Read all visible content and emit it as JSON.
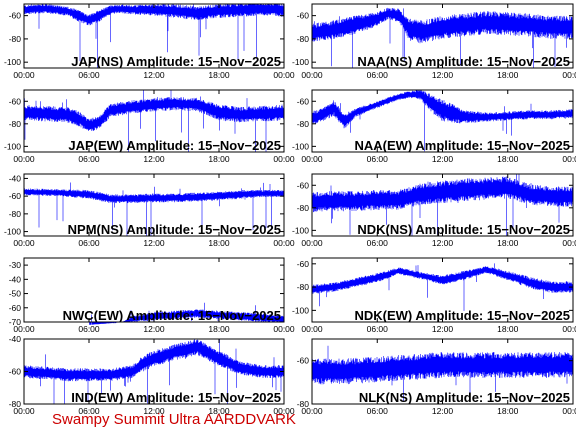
{
  "footer": "Swampy Summit Ultra AARDDVARK",
  "colors": {
    "trace": "#0000ff",
    "frame": "#000000",
    "footer": "#cc0000"
  },
  "chart_data": [
    {
      "type": "line",
      "title": "JAP(NS) Amplitude: 15−Nov−2025",
      "ylim": [
        -105,
        -50
      ],
      "yticks": [
        "-100",
        "-80",
        "-60"
      ],
      "xticks": [
        "00:00",
        "06:00",
        "12:00",
        "18:00",
        "00:00"
      ],
      "series": [
        {
          "x": [
            0,
            2,
            4,
            5,
            6,
            7,
            8,
            9,
            10,
            12,
            14,
            16,
            18,
            20,
            22,
            24
          ],
          "values": [
            -55,
            -54,
            -56,
            -60,
            -64,
            -60,
            -55,
            -54,
            -55,
            -55,
            -56,
            -58,
            -56,
            -55,
            -54,
            -55
          ],
          "noise": [
            4,
            4,
            4,
            5,
            5,
            5,
            4,
            4,
            4,
            5,
            6,
            6,
            6,
            6,
            6,
            6
          ],
          "spike": 0.35
        }
      ]
    },
    {
      "type": "line",
      "title": "NAA(NS) Amplitude: 15−Nov−2025",
      "ylim": [
        -105,
        -50
      ],
      "yticks": [
        "-100",
        "-80",
        "-60"
      ],
      "xticks": [
        "00:00",
        "06:00",
        "12:00",
        "18:00",
        "00:00"
      ],
      "series": [
        {
          "x": [
            0,
            2,
            4,
            6,
            7,
            8,
            9,
            10,
            12,
            14,
            16,
            18,
            20,
            22,
            24
          ],
          "values": [
            -75,
            -72,
            -68,
            -63,
            -58,
            -60,
            -72,
            -74,
            -70,
            -68,
            -66,
            -67,
            -68,
            -70,
            -70
          ],
          "noise": [
            8,
            8,
            8,
            6,
            5,
            6,
            10,
            10,
            10,
            10,
            10,
            10,
            10,
            10,
            10
          ],
          "spike": 0.25
        }
      ]
    },
    {
      "type": "line",
      "title": "JAP(EW) Amplitude: 15−Nov−2025",
      "ylim": [
        -105,
        -50
      ],
      "yticks": [
        "-100",
        "-80",
        "-60"
      ],
      "xticks": [
        "00:00",
        "06:00",
        "12:00",
        "18:00",
        "00:00"
      ],
      "series": [
        {
          "x": [
            0,
            2,
            4,
            5,
            6,
            7,
            8,
            10,
            12,
            14,
            16,
            18,
            20,
            22,
            24
          ],
          "values": [
            -70,
            -71,
            -72,
            -75,
            -82,
            -78,
            -68,
            -65,
            -63,
            -62,
            -63,
            -70,
            -72,
            -71,
            -70
          ],
          "noise": [
            7,
            7,
            7,
            7,
            6,
            6,
            6,
            6,
            6,
            6,
            6,
            7,
            7,
            7,
            7
          ],
          "spike": 0.35
        }
      ]
    },
    {
      "type": "line",
      "title": "NAA(EW) Amplitude: 15−Nov−2025",
      "ylim": [
        -105,
        -50
      ],
      "yticks": [
        "-100",
        "-80",
        "-60"
      ],
      "xticks": [
        "00:00",
        "06:00",
        "12:00",
        "18:00",
        "00:00"
      ],
      "series": [
        {
          "x": [
            0,
            1,
            2,
            3,
            4,
            6,
            8,
            9,
            10,
            11,
            12,
            14,
            16,
            18,
            20,
            22,
            24
          ],
          "values": [
            -75,
            -72,
            -66,
            -78,
            -70,
            -63,
            -56,
            -54,
            -54,
            -62,
            -68,
            -74,
            -74,
            -73,
            -72,
            -72,
            -71
          ],
          "noise": [
            6,
            6,
            7,
            7,
            4,
            3,
            3,
            3,
            5,
            8,
            10,
            6,
            4,
            4,
            4,
            4,
            4
          ],
          "spike": 0.2
        }
      ]
    },
    {
      "type": "line",
      "title": "NPM(NS) Amplitude: 15−Nov−2025",
      "ylim": [
        -105,
        -35
      ],
      "yticks": [
        "-100",
        "-80",
        "-60",
        "-40"
      ],
      "xticks": [
        "00:00",
        "06:00",
        "12:00",
        "18:00",
        "00:00"
      ],
      "series": [
        {
          "x": [
            0,
            3,
            6,
            8,
            10,
            12,
            14,
            16,
            18,
            20,
            22,
            24
          ],
          "values": [
            -55,
            -56,
            -58,
            -63,
            -63,
            -62,
            -62,
            -61,
            -60,
            -58,
            -57,
            -57
          ],
          "noise": [
            4,
            4,
            5,
            5,
            5,
            5,
            5,
            5,
            5,
            5,
            4,
            4
          ],
          "spike": 0.3
        }
      ]
    },
    {
      "type": "line",
      "title": "NDK(NS) Amplitude: 15−Nov−2025",
      "ylim": [
        -105,
        -50
      ],
      "yticks": [
        "-100",
        "-80",
        "-60"
      ],
      "xticks": [
        "00:00",
        "06:00",
        "12:00",
        "18:00",
        "00:00"
      ],
      "series": [
        {
          "x": [
            0,
            2,
            4,
            6,
            8,
            10,
            12,
            14,
            16,
            18,
            20,
            22,
            24
          ],
          "values": [
            -75,
            -74,
            -74,
            -73,
            -73,
            -68,
            -66,
            -64,
            -63,
            -62,
            -68,
            -70,
            -70
          ],
          "noise": [
            9,
            9,
            9,
            9,
            9,
            10,
            10,
            10,
            10,
            10,
            9,
            9,
            9
          ],
          "spike": 0.25
        }
      ]
    },
    {
      "type": "line",
      "title": "NWC(EW) Amplitude: 15−Nov−2025",
      "ylim": [
        -70,
        -25
      ],
      "yticks": [
        "-70",
        "-60",
        "-50",
        "-40",
        "-30"
      ],
      "xticks": [
        "00:00",
        "06:00",
        "12:00",
        "18:00",
        "00:00"
      ],
      "series": [
        {
          "x": [
            0,
            6,
            9,
            10,
            12,
            14,
            16,
            18,
            20,
            22,
            24
          ],
          "values": [
            -72,
            -72,
            -71,
            -68,
            -66,
            -65,
            -64,
            -65,
            -66,
            -67,
            -68
          ],
          "noise": [
            0,
            0,
            1,
            2,
            3,
            3,
            3,
            3,
            3,
            3,
            3
          ],
          "spike": 0.2
        }
      ]
    },
    {
      "type": "line",
      "title": "NDK(EW) Amplitude: 15−Nov−2025",
      "ylim": [
        -110,
        -55
      ],
      "yticks": [
        "-100",
        "-80",
        "-60"
      ],
      "xticks": [
        "00:00",
        "06:00",
        "12:00",
        "18:00",
        "00:00"
      ],
      "series": [
        {
          "x": [
            0,
            2,
            4,
            6,
            8,
            10,
            12,
            14,
            16,
            18,
            20,
            22,
            24
          ],
          "values": [
            -82,
            -80,
            -76,
            -72,
            -66,
            -70,
            -74,
            -70,
            -65,
            -70,
            -76,
            -80,
            -80
          ],
          "noise": [
            4,
            4,
            4,
            4,
            3,
            3,
            4,
            4,
            3,
            4,
            5,
            5,
            5
          ],
          "spike": 0.25
        }
      ]
    },
    {
      "type": "line",
      "title": "IND(EW) Amplitude: 15−Nov−2025",
      "ylim": [
        -80,
        -40
      ],
      "yticks": [
        "-80",
        "-60",
        "-40"
      ],
      "xticks": [
        "00:00",
        "06:00",
        "12:00",
        "18:00",
        "00:00"
      ],
      "series": [
        {
          "x": [
            0,
            2,
            4,
            6,
            8,
            10,
            11,
            12,
            14,
            16,
            18,
            20,
            22,
            24
          ],
          "values": [
            -60,
            -61,
            -62,
            -62,
            -62,
            -60,
            -55,
            -52,
            -48,
            -45,
            -52,
            -58,
            -60,
            -60
          ],
          "noise": [
            4,
            4,
            4,
            4,
            4,
            4,
            5,
            5,
            5,
            5,
            5,
            4,
            4,
            4
          ],
          "spike": 0.4
        }
      ]
    },
    {
      "type": "line",
      "title": "NLK(NS) Amplitude: 15−Nov−2025",
      "ylim": [
        -80,
        -50
      ],
      "yticks": [
        "-80",
        "-60"
      ],
      "xticks": [
        "00:00",
        "06:00",
        "12:00",
        "18:00",
        "00:00"
      ],
      "series": [
        {
          "x": [
            0,
            3,
            6,
            9,
            12,
            15,
            18,
            21,
            24
          ],
          "values": [
            -65,
            -65,
            -64,
            -63,
            -62,
            -62,
            -62,
            -62,
            -62
          ],
          "noise": [
            6,
            6,
            6,
            6,
            6,
            6,
            6,
            6,
            6
          ],
          "spike": 0.15
        }
      ]
    }
  ]
}
